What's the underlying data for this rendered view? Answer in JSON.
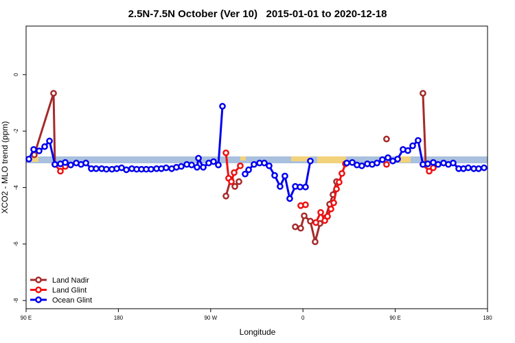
{
  "chart_data": {
    "type": "line",
    "title": "2.5N-7.5N October (Ver 10)   2015-01-01 to 2020-12-18",
    "x_label": "Longitude",
    "y_label": "XCO2 - MLO trend (ppm)",
    "xlim": [
      90,
      540
    ],
    "ylim": [
      -8.29,
      1.72
    ],
    "xticks": [
      {
        "value": 90,
        "label": "90 E"
      },
      180,
      {
        "value": 270,
        "label": "90 W"
      },
      {
        "value": 360,
        "label": "0"
      },
      {
        "value": 450,
        "label": "90 E"
      },
      {
        "value": 540,
        "label": "180"
      }
    ],
    "yticks": [
      0,
      -2,
      -4,
      -6,
      -8
    ],
    "legend": "bottom-left",
    "series": [
      {
        "name": "Land Nadir",
        "color": "#a52a2a",
        "x": [
          98.0,
          116.8,
          118.1,
          null,
          284.9,
          289.5,
          293.6,
          297.6,
          null,
          352.5,
          357.8,
          361.2,
          367.2,
          371.9,
          376.6,
          382.0,
          386.0,
          389.3,
          392.7,
          null,
          441.5,
          null,
          477.0,
          479.7
        ],
        "values": [
          -2.84,
          -0.66,
          -3.18,
          null,
          -4.3,
          -3.71,
          -3.96,
          -3.79,
          null,
          -5.39,
          -5.44,
          -5.0,
          -5.19,
          -5.92,
          -5.27,
          -5.07,
          -4.59,
          -4.25,
          -3.79,
          null,
          -2.28,
          null,
          -0.66,
          -3.18
        ]
      },
      {
        "name": "Land Glint",
        "color": "#ee1111",
        "x": [
          118.1,
          123.5,
          128.2,
          null,
          284.9,
          287.5,
          290.2,
          292.9,
          298.9,
          null,
          357.8,
          362.5,
          null,
          372.6,
          377.3,
          381.3,
          384.0,
          387.3,
          390.0,
          392.7,
          395.3,
          398.0,
          401.4,
          null,
          441.5,
          null,
          477.0,
          483.1,
          487.1
        ],
        "values": [
          -3.18,
          -3.42,
          -3.25,
          null,
          -2.77,
          -3.67,
          -3.79,
          -3.47,
          -3.23,
          null,
          -4.64,
          -4.61,
          null,
          -5.24,
          -4.88,
          -5.17,
          -5.02,
          -4.76,
          -4.54,
          -4.05,
          -3.81,
          -3.5,
          -3.16,
          null,
          -3.18,
          null,
          -3.18,
          -3.42,
          -3.3
        ]
      },
      {
        "name": "Ocean Glint",
        "color": "#0000ee",
        "x": [
          92.7,
          97.4,
          102.7,
          108.1,
          112.8,
          118.1,
          123.5,
          128.2,
          133.5,
          138.9,
          143.6,
          148.3,
          153.6,
          158.3,
          163.7,
          168.3,
          173.7,
          178.4,
          183.1,
          187.8,
          193.1,
          197.8,
          202.5,
          207.2,
          211.9,
          217.2,
          221.9,
          226.6,
          232.0,
          236.6,
          241.3,
          246.7,
          251.4,
          256.7,
          258.1,
          262.8,
          268.1,
          272.8,
          277.5,
          281.5,
          null,
          303.6,
          307.0,
          312.3,
          317.7,
          322.3,
          327.0,
          332.4,
          337.7,
          342.4,
          347.1,
          352.5,
          357.2,
          362.5,
          367.2,
          null,
          402.7,
          408.1,
          412.7,
          417.4,
          422.8,
          427.5,
          432.2,
          437.5,
          442.9,
          447.6,
          452.3,
          457.6,
          462.3,
          467.0,
          472.3,
          477.0,
          481.7,
          487.1,
          491.8,
          497.1,
          501.8,
          506.5,
          511.9,
          516.5,
          521.2,
          526.6,
          531.3,
          536.6
        ],
        "values": [
          -2.99,
          -2.65,
          -2.7,
          -2.55,
          -2.35,
          -3.18,
          -3.16,
          -3.11,
          -3.2,
          -3.13,
          -3.18,
          -3.13,
          -3.33,
          -3.33,
          -3.33,
          -3.35,
          -3.35,
          -3.33,
          -3.3,
          -3.37,
          -3.33,
          -3.35,
          -3.35,
          -3.35,
          -3.35,
          -3.33,
          -3.33,
          -3.3,
          -3.33,
          -3.28,
          -3.25,
          -3.18,
          -3.2,
          -3.28,
          -2.96,
          -3.28,
          -3.13,
          -3.08,
          -3.2,
          -1.12,
          null,
          -3.52,
          -3.37,
          -3.18,
          -3.13,
          -3.13,
          -3.23,
          -3.57,
          -3.96,
          -3.59,
          -4.39,
          -3.96,
          -3.98,
          -3.98,
          -3.06,
          null,
          -3.13,
          -3.11,
          -3.2,
          -3.23,
          -3.16,
          -3.18,
          -3.13,
          -3.01,
          -2.94,
          -3.06,
          -2.99,
          -2.65,
          -2.69,
          -2.52,
          -2.33,
          -3.18,
          -3.16,
          -3.11,
          -3.18,
          -3.13,
          -3.18,
          -3.13,
          -3.33,
          -3.33,
          -3.3,
          -3.33,
          -3.33,
          -3.3
        ]
      }
    ]
  }
}
